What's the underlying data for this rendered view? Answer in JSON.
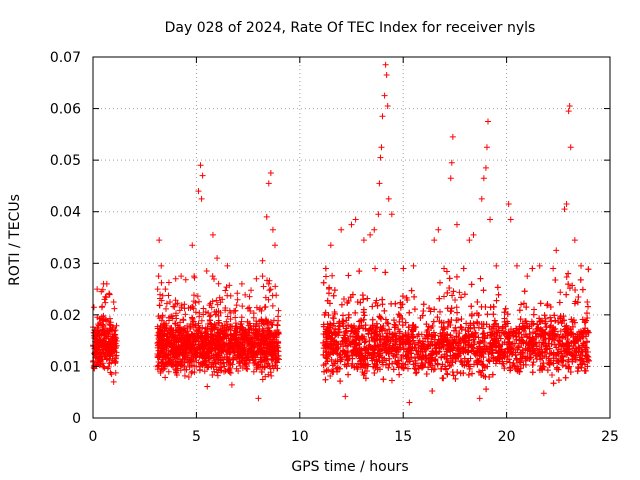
{
  "chart_data": {
    "type": "scatter",
    "title": "Day 028 of 2024, Rate Of TEC Index for receiver nyls",
    "xlabel": "GPS time / hours",
    "ylabel": "ROTI / TECUs",
    "xlim": [
      0,
      25
    ],
    "ylim": [
      0,
      0.07
    ],
    "x_ticks": [
      0,
      5,
      10,
      15,
      20,
      25
    ],
    "x_tick_labels": [
      "0",
      "5",
      "10",
      "15",
      "20",
      "25"
    ],
    "y_ticks": [
      0,
      0.01,
      0.02,
      0.03,
      0.04,
      0.05,
      0.06,
      0.07
    ],
    "y_tick_labels": [
      "0",
      "0.01",
      "0.02",
      "0.03",
      "0.04",
      "0.05",
      "0.06",
      "0.07"
    ],
    "grid": true,
    "marker": "+",
    "series": [
      {
        "name": "ROTI",
        "color": "#ff0000",
        "segments": [
          {
            "start": 0.0,
            "end": 1.15,
            "base": 0.014,
            "spread": 0.008
          },
          {
            "start": 3.1,
            "end": 9.0,
            "base": 0.014,
            "spread": 0.009
          },
          {
            "start": 11.1,
            "end": 24.0,
            "base": 0.014,
            "spread": 0.01
          }
        ],
        "points": [
          [
            0.2,
            0.025
          ],
          [
            0.4,
            0.0245
          ],
          [
            0.6,
            0.0235
          ],
          [
            0.9,
            0.0085
          ],
          [
            1.0,
            0.007
          ],
          [
            3.2,
            0.0345
          ],
          [
            3.3,
            0.0295
          ],
          [
            3.5,
            0.025
          ],
          [
            4.0,
            0.027
          ],
          [
            4.8,
            0.0335
          ],
          [
            5.1,
            0.044
          ],
          [
            5.2,
            0.049
          ],
          [
            5.25,
            0.0425
          ],
          [
            5.3,
            0.047
          ],
          [
            5.5,
            0.0285
          ],
          [
            5.8,
            0.0355
          ],
          [
            6.0,
            0.031
          ],
          [
            6.5,
            0.0295
          ],
          [
            7.2,
            0.026
          ],
          [
            7.9,
            0.027
          ],
          [
            8.2,
            0.0305
          ],
          [
            8.4,
            0.039
          ],
          [
            8.5,
            0.0455
          ],
          [
            8.6,
            0.0475
          ],
          [
            8.7,
            0.0365
          ],
          [
            8.8,
            0.0335
          ],
          [
            11.5,
            0.0335
          ],
          [
            12.0,
            0.0365
          ],
          [
            12.5,
            0.0375
          ],
          [
            12.7,
            0.0385
          ],
          [
            13.1,
            0.0345
          ],
          [
            13.4,
            0.0355
          ],
          [
            13.6,
            0.0365
          ],
          [
            13.8,
            0.0395
          ],
          [
            13.85,
            0.0455
          ],
          [
            13.9,
            0.0505
          ],
          [
            13.95,
            0.0525
          ],
          [
            14.0,
            0.0585
          ],
          [
            14.1,
            0.0625
          ],
          [
            14.15,
            0.0685
          ],
          [
            14.2,
            0.0665
          ],
          [
            14.25,
            0.0605
          ],
          [
            14.3,
            0.0425
          ],
          [
            14.45,
            0.0395
          ],
          [
            15.5,
            0.0295
          ],
          [
            16.5,
            0.0345
          ],
          [
            16.7,
            0.0365
          ],
          [
            17.3,
            0.0465
          ],
          [
            17.35,
            0.0495
          ],
          [
            17.4,
            0.0545
          ],
          [
            17.6,
            0.0375
          ],
          [
            18.2,
            0.0345
          ],
          [
            18.4,
            0.0355
          ],
          [
            18.8,
            0.0425
          ],
          [
            18.9,
            0.0465
          ],
          [
            19.0,
            0.0485
          ],
          [
            19.05,
            0.0525
          ],
          [
            19.1,
            0.0575
          ],
          [
            19.2,
            0.0385
          ],
          [
            19.5,
            0.0295
          ],
          [
            20.1,
            0.0415
          ],
          [
            20.2,
            0.0385
          ],
          [
            20.5,
            0.0295
          ],
          [
            21.0,
            0.0275
          ],
          [
            21.6,
            0.0295
          ],
          [
            22.4,
            0.0325
          ],
          [
            22.8,
            0.0405
          ],
          [
            22.9,
            0.0415
          ],
          [
            23.0,
            0.0595
          ],
          [
            23.05,
            0.0605
          ],
          [
            23.1,
            0.0525
          ],
          [
            23.3,
            0.0345
          ],
          [
            23.6,
            0.0295
          ],
          [
            23.9,
            0.0225
          ],
          [
            15.3,
            0.003
          ],
          [
            18.7,
            0.0038
          ],
          [
            8.0,
            0.0038
          ],
          [
            12.2,
            0.0042
          ],
          [
            21.8,
            0.0048
          ]
        ]
      }
    ]
  }
}
